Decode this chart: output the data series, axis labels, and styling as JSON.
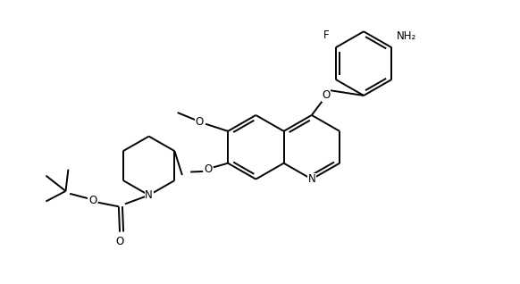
{
  "background_color": "#ffffff",
  "line_color": "#000000",
  "line_width": 1.4,
  "font_size": 8.5,
  "figsize": [
    5.82,
    3.18
  ],
  "dpi": 100,
  "xlim": [
    0,
    10
  ],
  "ylim": [
    0,
    5.5
  ]
}
